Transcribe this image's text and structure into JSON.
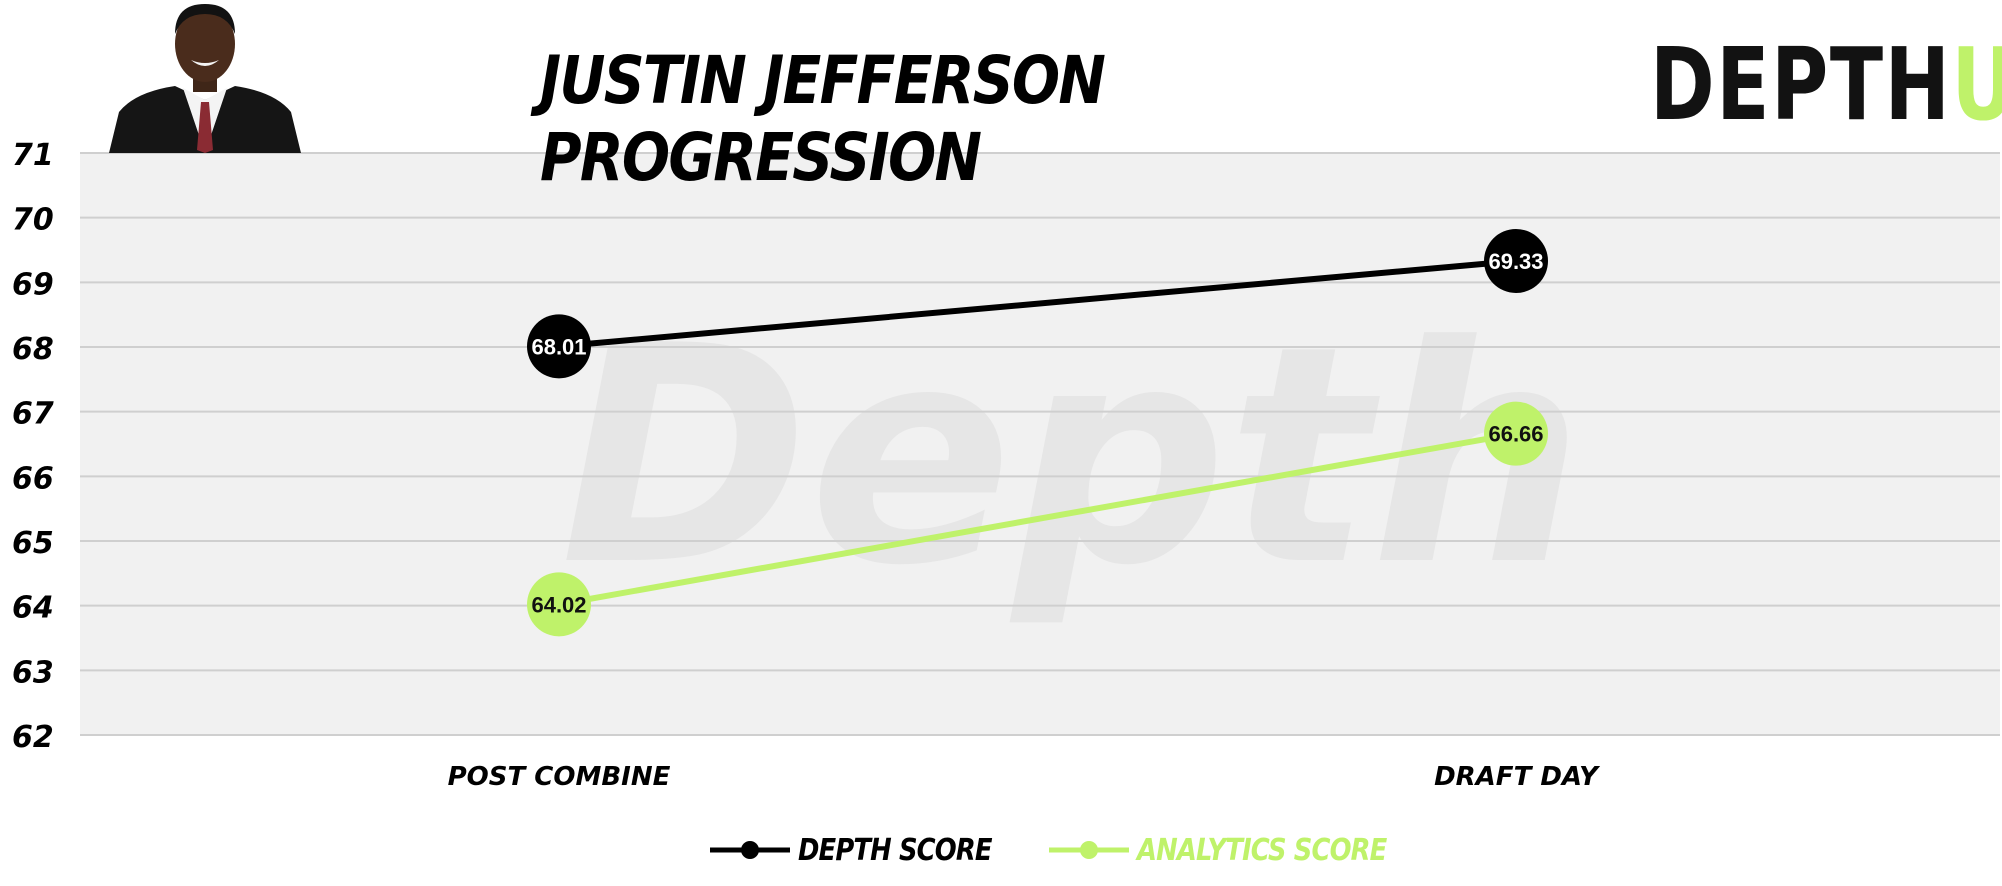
{
  "colors": {
    "depth": "#000000",
    "analytics": "#bff26a",
    "plot_bg": "#f1f1f1",
    "grid": "#cfcfcf",
    "watermark": "#e6e6e6"
  },
  "header": {
    "title": "JUSTIN JEFFERSON PROGRESSION",
    "brand_main": "DEPTH",
    "brand_accent": "U"
  },
  "watermark": {
    "text": "Depth"
  },
  "legend": {
    "depth_label": "DEPTH SCORE",
    "analytics_label": "ANALYTICS SCORE"
  },
  "chart_data": {
    "type": "line",
    "title": "JUSTIN JEFFERSON PROGRESSION",
    "categories": [
      "POST COMBINE",
      "DRAFT DAY"
    ],
    "ylim": [
      62,
      71
    ],
    "yticks": [
      62,
      63,
      64,
      65,
      66,
      67,
      68,
      69,
      70,
      71
    ],
    "grid": true,
    "legend_position": "bottom-center",
    "series": [
      {
        "name": "DEPTH SCORE",
        "values": [
          68.01,
          69.33
        ],
        "labels": [
          "68.01",
          "69.33"
        ],
        "color": "#000000",
        "label_color": "#ffffff"
      },
      {
        "name": "ANALYTICS SCORE",
        "values": [
          64.02,
          66.66
        ],
        "labels": [
          "64.02",
          "66.66"
        ],
        "color": "#bff26a",
        "label_color": "#111111"
      }
    ]
  }
}
